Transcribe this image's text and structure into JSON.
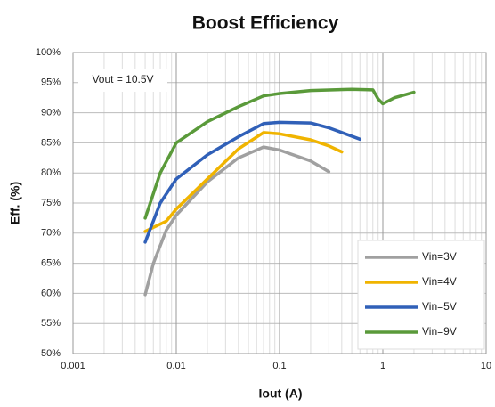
{
  "chart_data": {
    "type": "line",
    "title": "Boost Efficiency",
    "xlabel": "Iout (A)",
    "ylabel": "Eff. (%)",
    "annotation": "Vout = 10.5V",
    "xscale": "log",
    "grid": true,
    "legend": "lower right",
    "xlim": [
      0.001,
      10
    ],
    "xticks": [
      0.001,
      0.01,
      0.1,
      1,
      10
    ],
    "ylim": [
      50,
      100
    ],
    "yticks": [
      {
        "value": 50,
        "label": "50%"
      },
      {
        "value": 55,
        "label": "55%"
      },
      {
        "value": 60,
        "label": "60%"
      },
      {
        "value": 65,
        "label": "65%"
      },
      {
        "value": 70,
        "label": "70%"
      },
      {
        "value": 75,
        "label": "75%"
      },
      {
        "value": 80,
        "label": "80%"
      },
      {
        "value": 85,
        "label": "85%"
      },
      {
        "value": 90,
        "label": "90%"
      },
      {
        "value": 95,
        "label": "95%"
      },
      {
        "value": 100,
        "label": "100%"
      }
    ],
    "series": [
      {
        "name": "Vin=3V",
        "color": "#a0a0a0",
        "x": [
          0.005,
          0.006,
          0.008,
          0.01,
          0.02,
          0.04,
          0.07,
          0.1,
          0.2,
          0.3
        ],
        "values": [
          59.8,
          65,
          70.5,
          73,
          78.5,
          82.5,
          84.3,
          83.8,
          82,
          80.2
        ]
      },
      {
        "name": "Vin=4V",
        "color": "#f0b400",
        "x": [
          0.005,
          0.008,
          0.01,
          0.02,
          0.04,
          0.07,
          0.1,
          0.2,
          0.3,
          0.4
        ],
        "values": [
          70.3,
          72,
          74,
          79,
          84,
          86.7,
          86.5,
          85.5,
          84.5,
          83.5
        ]
      },
      {
        "name": "Vin=5V",
        "color": "#3060b8",
        "x": [
          0.005,
          0.007,
          0.01,
          0.02,
          0.04,
          0.07,
          0.1,
          0.2,
          0.3,
          0.6
        ],
        "values": [
          68.5,
          75,
          79,
          83,
          86,
          88.2,
          88.4,
          88.3,
          87.5,
          85.6
        ]
      },
      {
        "name": "Vin=9V",
        "color": "#5a9a3a",
        "x": [
          0.005,
          0.007,
          0.01,
          0.02,
          0.04,
          0.07,
          0.1,
          0.2,
          0.5,
          0.8,
          0.9,
          1,
          1.3,
          2
        ],
        "values": [
          72.5,
          80,
          85,
          88.5,
          91,
          92.8,
          93.2,
          93.7,
          93.9,
          93.8,
          92.3,
          91.5,
          92.5,
          93.4
        ]
      }
    ]
  }
}
